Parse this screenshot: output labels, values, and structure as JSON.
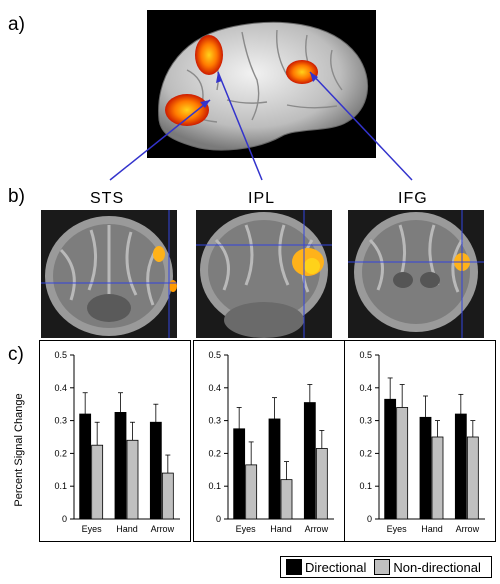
{
  "panel_labels": {
    "a": "a)",
    "b": "b)",
    "c": "c)"
  },
  "regions": [
    "STS",
    "IPL",
    "IFG"
  ],
  "y_axis_label": "Percent Signal Change",
  "legend": {
    "directional": "Directional",
    "non_directional": "Non-directional"
  },
  "colors": {
    "directional": "#000000",
    "non_directional": "#c0c0c0",
    "arrow": "#3333cc",
    "crosshair": "#3344dd",
    "activation_hot": "#ffd21a",
    "activation_mid": "#ff7a00",
    "activation_low": "#cc1a00"
  },
  "chart_data": [
    {
      "type": "bar",
      "categories": [
        "Eyes",
        "Hand",
        "Arrow"
      ],
      "series": [
        {
          "name": "Directional",
          "values": [
            0.32,
            0.325,
            0.295
          ],
          "errors": [
            0.065,
            0.06,
            0.055
          ]
        },
        {
          "name": "Non-directional",
          "values": [
            0.225,
            0.24,
            0.14
          ],
          "errors": [
            0.07,
            0.055,
            0.055
          ]
        }
      ],
      "ylim": [
        0,
        0.5
      ],
      "yticks": [
        "0",
        "0.1",
        "0.2",
        "0.3",
        "0.4",
        "0.5"
      ],
      "ylabel": "Percent Signal Change"
    },
    {
      "type": "bar",
      "categories": [
        "Eyes",
        "Hand",
        "Arrow"
      ],
      "series": [
        {
          "name": "Directional",
          "values": [
            0.275,
            0.305,
            0.355
          ],
          "errors": [
            0.065,
            0.065,
            0.055
          ]
        },
        {
          "name": "Non-directional",
          "values": [
            0.165,
            0.12,
            0.215
          ],
          "errors": [
            0.07,
            0.055,
            0.055
          ]
        }
      ],
      "ylim": [
        0,
        0.5
      ],
      "yticks": [
        "0",
        "0.1",
        "0.2",
        "0.3",
        "0.4",
        "0.5"
      ]
    },
    {
      "type": "bar",
      "categories": [
        "Eyes",
        "Hand",
        "Arrow"
      ],
      "series": [
        {
          "name": "Directional",
          "values": [
            0.365,
            0.31,
            0.32
          ],
          "errors": [
            0.065,
            0.065,
            0.06
          ]
        },
        {
          "name": "Non-directional",
          "values": [
            0.34,
            0.25,
            0.25
          ],
          "errors": [
            0.07,
            0.05,
            0.05
          ]
        }
      ],
      "ylim": [
        0,
        0.5
      ],
      "yticks": [
        "0",
        "0.1",
        "0.2",
        "0.3",
        "0.4",
        "0.5"
      ]
    }
  ]
}
